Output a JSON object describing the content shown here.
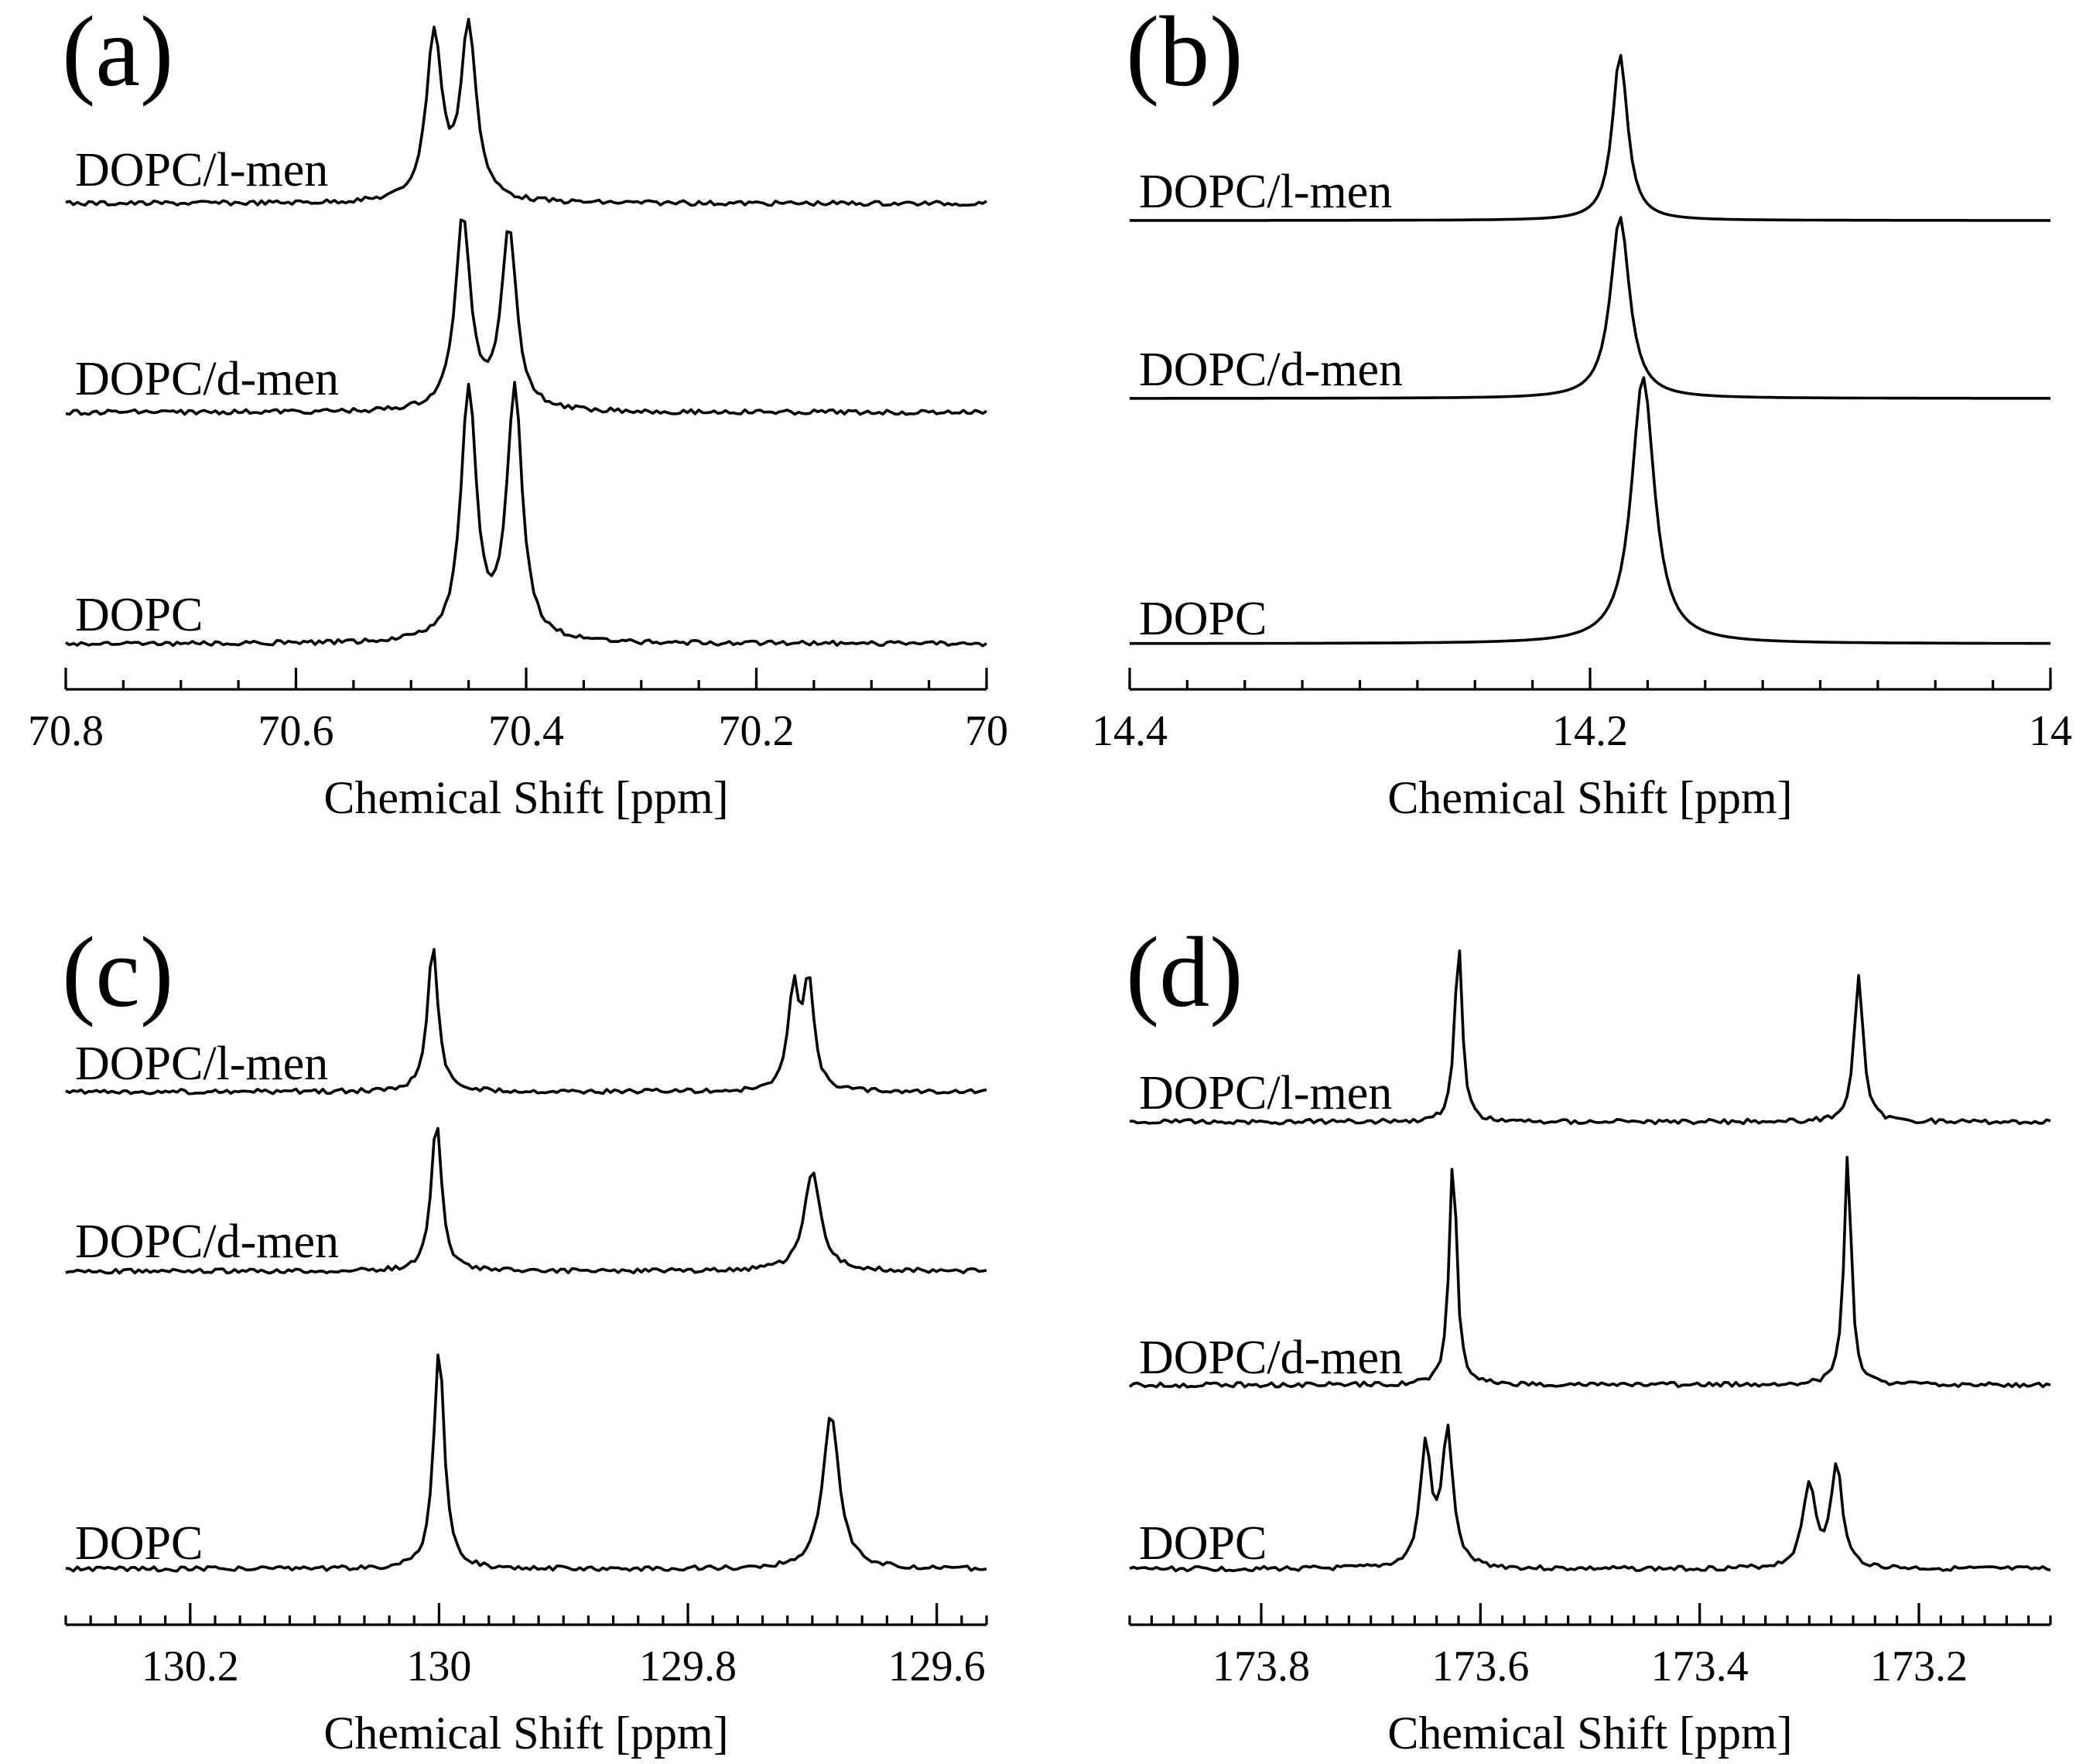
{
  "chart_data": [
    {
      "panel": "(a)",
      "type": "line",
      "xlabel": "Chemical Shift [ppm]",
      "xlim": [
        70.8,
        70.0
      ],
      "ticks": [
        70.8,
        70.6,
        70.4,
        70.2,
        70
      ],
      "tick_labels": [
        "70.8",
        "70.6",
        "70.4",
        "70.2",
        "70"
      ],
      "minor_step": 0.05,
      "series": [
        {
          "name": "DOPC/l-men",
          "peaks": [
            {
              "x": 70.48,
              "h": 1.0,
              "w": 0.008
            },
            {
              "x": 70.45,
              "h": 1.05,
              "w": 0.008
            }
          ]
        },
        {
          "name": "DOPC/d-men",
          "peaks": [
            {
              "x": 70.455,
              "h": 1.08,
              "w": 0.008
            },
            {
              "x": 70.415,
              "h": 1.02,
              "w": 0.008
            }
          ]
        },
        {
          "name": "DOPC",
          "peaks": [
            {
              "x": 70.45,
              "h": 1.3,
              "w": 0.008
            },
            {
              "x": 70.41,
              "h": 1.3,
              "w": 0.008
            }
          ]
        }
      ]
    },
    {
      "panel": "(b)",
      "type": "line",
      "xlabel": "Chemical Shift [ppm]",
      "xlim": [
        14.4,
        14.0
      ],
      "ticks": [
        14.4,
        14.2,
        14
      ],
      "tick_labels": [
        "14.4",
        "14.2",
        "14"
      ],
      "minor_step": 0.025,
      "series": [
        {
          "name": "DOPC/l-men",
          "peaks": [
            {
              "x": 14.187,
              "h": 1.0,
              "w": 0.004
            }
          ]
        },
        {
          "name": "DOPC/d-men",
          "peaks": [
            {
              "x": 14.187,
              "h": 1.0,
              "w": 0.005
            }
          ]
        },
        {
          "name": "DOPC",
          "peaks": [
            {
              "x": 14.177,
              "h": 1.5,
              "w": 0.006
            }
          ]
        }
      ]
    },
    {
      "panel": "(c)",
      "type": "line",
      "xlabel": "Chemical Shift [ppm]",
      "xlim": [
        130.3,
        129.56
      ],
      "ticks": [
        130.2,
        130,
        129.8,
        129.6
      ],
      "tick_labels": [
        "130.2",
        "130",
        "129.8",
        "129.6"
      ],
      "minor_step": 0.02,
      "series": [
        {
          "name": "DOPC/l-men",
          "peaks": [
            {
              "x": 130.005,
              "h": 1.0,
              "w": 0.005
            },
            {
              "x": 129.715,
              "h": 0.7,
              "w": 0.005
            },
            {
              "x": 129.703,
              "h": 0.72,
              "w": 0.005
            }
          ]
        },
        {
          "name": "DOPC/d-men",
          "peaks": [
            {
              "x": 130.002,
              "h": 1.15,
              "w": 0.005
            },
            {
              "x": 129.7,
              "h": 0.75,
              "w": 0.008
            }
          ]
        },
        {
          "name": "DOPC",
          "peaks": [
            {
              "x": 130.0,
              "h": 1.8,
              "w": 0.005
            },
            {
              "x": 129.685,
              "h": 1.25,
              "w": 0.008
            }
          ]
        }
      ]
    },
    {
      "panel": "(d)",
      "type": "line",
      "xlabel": "Chemical Shift [ppm]",
      "xlim": [
        173.92,
        173.08
      ],
      "ticks": [
        173.8,
        173.6,
        173.4,
        173.2
      ],
      "tick_labels": [
        "173.8",
        "173.6",
        "173.4",
        "173.2"
      ],
      "minor_step": 0.02,
      "series": [
        {
          "name": "DOPC/l-men",
          "peaks": [
            {
              "x": 173.62,
              "h": 1.0,
              "w": 0.004
            },
            {
              "x": 173.255,
              "h": 0.8,
              "w": 0.005
            }
          ]
        },
        {
          "name": "DOPC/d-men",
          "peaks": [
            {
              "x": 173.625,
              "h": 1.3,
              "w": 0.004
            },
            {
              "x": 173.265,
              "h": 1.3,
              "w": 0.004
            }
          ]
        },
        {
          "name": "DOPC",
          "peaks": [
            {
              "x": 173.65,
              "h": 0.65,
              "w": 0.006
            },
            {
              "x": 173.63,
              "h": 0.72,
              "w": 0.006
            },
            {
              "x": 173.3,
              "h": 0.45,
              "w": 0.007
            },
            {
              "x": 173.275,
              "h": 0.55,
              "w": 0.006
            }
          ]
        }
      ]
    }
  ]
}
